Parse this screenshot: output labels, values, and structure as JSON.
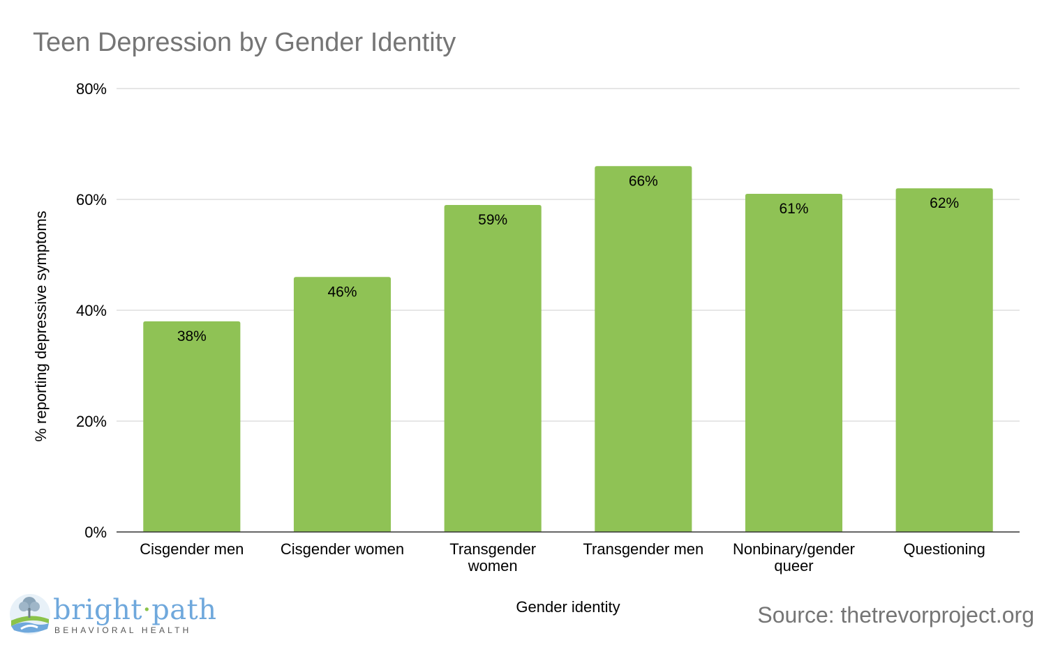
{
  "chart_data": {
    "type": "bar",
    "title": "Teen Depression by Gender Identity",
    "xlabel": "Gender identity",
    "ylabel": "% reporting depressive symptoms",
    "categories": [
      [
        "Cisgender men"
      ],
      [
        "Cisgender women"
      ],
      [
        "Transgender",
        "women"
      ],
      [
        "Transgender men"
      ],
      [
        "Nonbinary/gender",
        "queer"
      ],
      [
        "Questioning"
      ]
    ],
    "values": [
      38,
      46,
      59,
      66,
      61,
      62
    ],
    "data_labels": [
      "38%",
      "46%",
      "59%",
      "66%",
      "61%",
      "62%"
    ],
    "ylim": [
      0,
      80
    ],
    "yticks": [
      0,
      20,
      40,
      60,
      80
    ],
    "ytick_labels": [
      "0%",
      "20%",
      "40%",
      "60%",
      "80%"
    ],
    "grid": true,
    "legend": "none",
    "bar_color": "#8fc255"
  },
  "source": "Source: thetrevorproject.org",
  "logo": {
    "word_left": "bright",
    "word_dot": "·",
    "word_right": "path",
    "tagline": "BEHAVIORAL HEALTH",
    "icon": "tree-landscape-icon"
  }
}
